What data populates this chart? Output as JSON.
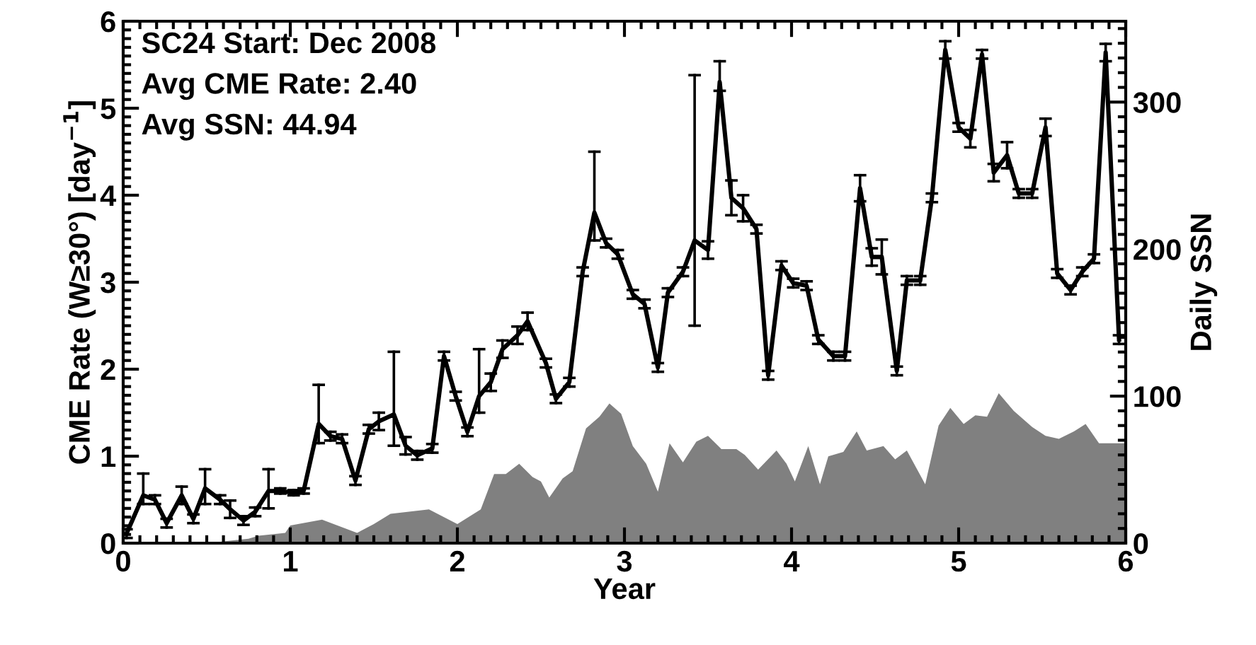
{
  "chart_data": {
    "type": "line",
    "xlabel": "Year",
    "ylabel": "CME Rate (W≥30°) [day$^{−1}$]",
    "y2label": "Daily SSN",
    "annotations": [
      "SC24 Start: Dec 2008",
      "Avg CME Rate: 2.40",
      "Avg SSN: 44.94"
    ],
    "xlim": [
      0,
      6
    ],
    "xticks": [
      0,
      1,
      2,
      3,
      4,
      5,
      6
    ],
    "ylim": [
      0,
      6
    ],
    "yticks": [
      0,
      1,
      2,
      3,
      4,
      5,
      6
    ],
    "y2lim": [
      0,
      355
    ],
    "y2ticks": [
      0,
      100,
      200,
      300
    ],
    "grid": false,
    "legend": false,
    "marker": "none",
    "line_style": "solid",
    "series": [
      {
        "type": "area",
        "axis": "y2",
        "color": "#808080",
        "x": [
          0,
          0.5,
          0.75,
          0.81,
          0.97,
          1.0,
          1.19,
          1.4,
          1.5,
          1.6,
          1.83,
          2.0,
          2.14,
          2.22,
          2.29,
          2.37,
          2.45,
          2.5,
          2.55,
          2.63,
          2.69,
          2.77,
          2.85,
          2.91,
          2.98,
          3.05,
          3.13,
          3.2,
          3.27,
          3.35,
          3.43,
          3.5,
          3.58,
          3.67,
          3.72,
          3.8,
          3.91,
          3.97,
          4.02,
          4.1,
          4.17,
          4.22,
          4.31,
          4.39,
          4.45,
          4.55,
          4.62,
          4.69,
          4.8,
          4.88,
          4.95,
          5.03,
          5.1,
          5.17,
          5.24,
          5.33,
          5.44,
          5.52,
          5.6,
          5.69,
          5.76,
          5.84,
          6.0
        ],
        "values": [
          0,
          0,
          3,
          5,
          7,
          12,
          16,
          7,
          13,
          20,
          23,
          13,
          23,
          47,
          47,
          54,
          45,
          42,
          31,
          44,
          49,
          78,
          86,
          95,
          88,
          66,
          54,
          35,
          68,
          55,
          69,
          73,
          64,
          64,
          60,
          50,
          63,
          54,
          42,
          66,
          40,
          59,
          62,
          76,
          63,
          66,
          57,
          63,
          40,
          80,
          92,
          81,
          87,
          86,
          102,
          90,
          79,
          73,
          71,
          76,
          81,
          68,
          68
        ]
      },
      {
        "color": "#000000",
        "x": [
          0.02,
          0.12,
          0.19,
          0.26,
          0.35,
          0.42,
          0.49,
          0.58,
          0.64,
          0.72,
          0.79,
          0.87,
          0.94,
          1.02,
          1.08,
          1.17,
          1.24,
          1.31,
          1.39,
          1.47,
          1.53,
          1.62,
          1.69,
          1.76,
          1.85,
          1.92,
          1.99,
          2.06,
          2.13,
          2.2,
          2.27,
          2.36,
          2.42,
          2.53,
          2.59,
          2.67,
          2.75,
          2.82,
          2.89,
          2.96,
          3.05,
          3.12,
          3.2,
          3.26,
          3.35,
          3.42,
          3.5,
          3.57,
          3.64,
          3.71,
          3.79,
          3.86,
          3.94,
          4.01,
          4.09,
          4.16,
          4.25,
          4.32,
          4.41,
          4.48,
          4.54,
          4.63,
          4.69,
          4.77,
          4.84,
          4.92,
          5.0,
          5.07,
          5.14,
          5.21,
          5.29,
          5.36,
          5.44,
          5.52,
          5.59,
          5.67,
          5.74,
          5.81,
          5.88,
          5.96
        ],
        "values": [
          0.11,
          0.55,
          0.5,
          0.23,
          0.55,
          0.28,
          0.63,
          0.5,
          0.39,
          0.26,
          0.36,
          0.6,
          0.6,
          0.58,
          0.6,
          1.37,
          1.23,
          1.2,
          0.72,
          1.31,
          1.4,
          1.48,
          1.12,
          1.01,
          1.09,
          2.15,
          1.69,
          1.28,
          1.69,
          1.85,
          2.23,
          2.39,
          2.55,
          2.07,
          1.66,
          1.85,
          3.12,
          3.8,
          3.45,
          3.32,
          2.86,
          2.75,
          2.02,
          2.88,
          3.12,
          3.48,
          3.37,
          5.3,
          3.97,
          3.85,
          3.61,
          1.93,
          3.19,
          2.99,
          2.96,
          2.34,
          2.15,
          2.15,
          4.08,
          3.29,
          3.29,
          1.98,
          3.02,
          3.02,
          3.97,
          5.67,
          4.78,
          4.65,
          5.62,
          4.26,
          4.46,
          4.02,
          4.02,
          4.78,
          3.1,
          2.91,
          3.12,
          3.27,
          5.64,
          2.34
        ],
        "errors": [
          0.05,
          [
            0.45,
            0.8
          ],
          0.05,
          0.05,
          0.1,
          0.05,
          [
            0.45,
            0.85
          ],
          0.05,
          0.1,
          0.05,
          0.05,
          [
            0.4,
            0.85
          ],
          0.03,
          0.03,
          0.03,
          [
            1.15,
            1.82
          ],
          0.05,
          0.05,
          0.05,
          0.05,
          0.1,
          [
            1.12,
            2.2
          ],
          0.1,
          0.05,
          0.05,
          0.05,
          0.05,
          0.05,
          [
            1.5,
            2.23
          ],
          0.1,
          0.1,
          0.1,
          0.1,
          0.05,
          0.05,
          0.05,
          0.05,
          [
            3.48,
            4.5
          ],
          0.05,
          0.05,
          0.05,
          0.05,
          0.05,
          0.05,
          0.05,
          [
            2.5,
            5.38
          ],
          0.1,
          [
            5.2,
            5.54
          ],
          0.2,
          0.15,
          0.05,
          0.05,
          0.05,
          0.05,
          0.05,
          0.05,
          0.05,
          0.05,
          0.15,
          0.1,
          0.2,
          0.05,
          0.05,
          0.05,
          0.05,
          0.1,
          0.05,
          0.1,
          0.05,
          0.1,
          0.15,
          0.05,
          0.05,
          0.1,
          0.05,
          0.05,
          0.05,
          0.05,
          0.1,
          0.05
        ]
      }
    ]
  }
}
